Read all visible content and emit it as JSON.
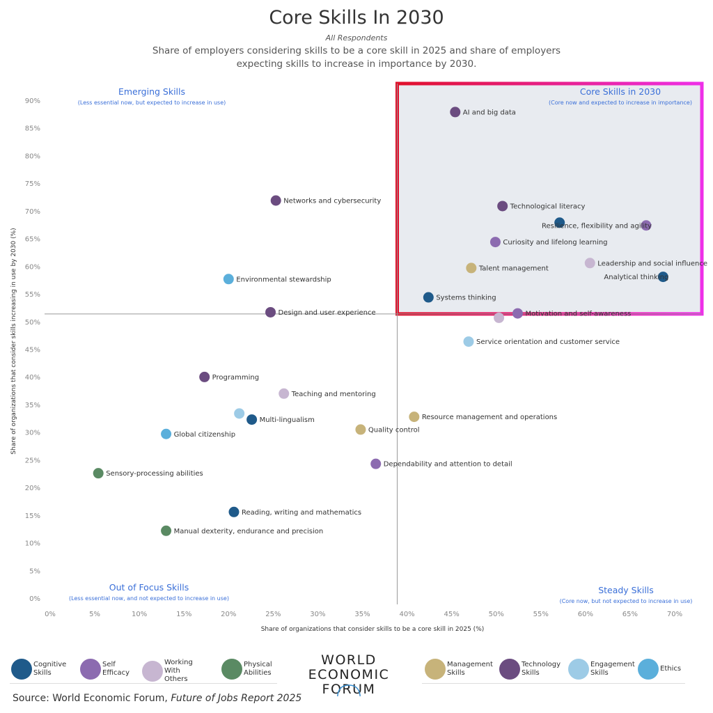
{
  "header": {
    "title": "Core Skills In 2030",
    "respondents": "All Respondents",
    "subtitle": "Share of employers considering skills to be a core skill in 2025 and share of employers expecting skills to increase in importance by 2030."
  },
  "quadrants": {
    "emerging": {
      "title": "Emerging Skills",
      "subtitle": "(Less essential now, but expected to increase in use)"
    },
    "core": {
      "title": "Core Skills in 2030",
      "subtitle": "(Core now and expected to increase in importance)"
    },
    "out_of_focus": {
      "title": "Out of Focus Skills",
      "subtitle": "(Less essential now, and not expected to increase in use)"
    },
    "steady": {
      "title": "Steady Skills",
      "subtitle": "(Core now, but not expected to increase in use)"
    }
  },
  "colors": {
    "Cognitive Skills": "#1f5a8a",
    "Self Efficacy": "#8c6bb0",
    "Working With Others": "#c7b6d1",
    "Physical Abilities": "#5a8a63",
    "Management Skills": "#c7b37a",
    "Technology Skills": "#6b4c80",
    "Engagement Skills": "#9dcbe6",
    "Ethics": "#5bafdb",
    "quadrant_fill": "#e8ebf0",
    "quadrant_border_start": "#e0102a",
    "quadrant_border_end": "#ee2fe8",
    "quadrant_title": "#3a6fd8"
  },
  "legend": [
    {
      "label": "Cognitive Skills",
      "line1": "Cognitive",
      "line2": "Skills"
    },
    {
      "label": "Self Efficacy",
      "line1": "Self",
      "line2": "Efficacy"
    },
    {
      "label": "Working With Others",
      "line1": "Working With",
      "line2": "Others"
    },
    {
      "label": "Physical Abilities",
      "line1": "Physical",
      "line2": "Abilities"
    },
    {
      "label": "Management Skills",
      "line1": "Management",
      "line2": "Skills"
    },
    {
      "label": "Technology Skills",
      "line1": "Technology",
      "line2": "Skills"
    },
    {
      "label": "Engagement Skills",
      "line1": "Engagement",
      "line2": "Skills"
    },
    {
      "label": "Ethics",
      "line1": "Ethics",
      "line2": ""
    }
  ],
  "logo": {
    "line1": "WORLD",
    "line2": "ECONOMIC",
    "line3": "FORUM"
  },
  "source": {
    "prefix": "Source: World Economic Forum, ",
    "report": "Future of Jobs Report 2025"
  },
  "chart_data": {
    "type": "scatter",
    "title": "Core Skills In 2030",
    "xlabel": "Share of organizations that consider skills to be a core skill in 2025 (%)",
    "ylabel": "Share of organizations that consider skills increasing in use by 2030 (%)",
    "xlim": [
      0,
      70
    ],
    "ylim": [
      0,
      90
    ],
    "xticks": [
      "0%",
      "5%",
      "10%",
      "15%",
      "20%",
      "25%",
      "30%",
      "35%",
      "40%",
      "45%",
      "50%",
      "55%",
      "60%",
      "65%",
      "70%"
    ],
    "yticks": [
      "0%",
      "5%",
      "10%",
      "15%",
      "20%",
      "25%",
      "30%",
      "35%",
      "40%",
      "45%",
      "50%",
      "55%",
      "60%",
      "65%",
      "70%",
      "75%",
      "80%",
      "85%",
      "90%"
    ],
    "divider": {
      "x": 38.9,
      "y": 51.5
    },
    "points": [
      {
        "label": "AI and big data",
        "x": 45.4,
        "y": 88.0,
        "category": "Technology Skills",
        "label_side": "right"
      },
      {
        "label": "Networks and cybersecurity",
        "x": 25.3,
        "y": 72.0,
        "category": "Technology Skills",
        "label_side": "right"
      },
      {
        "label": "Technological literacy",
        "x": 50.7,
        "y": 71.0,
        "category": "Technology Skills",
        "label_side": "right"
      },
      {
        "label": "",
        "x": 57.1,
        "y": 68.0,
        "category": "Cognitive Skills",
        "label_side": "right"
      },
      {
        "label": "Resilience, flexibility and agility",
        "x": 66.8,
        "y": 67.5,
        "category": "Self Efficacy",
        "label_side": "left"
      },
      {
        "label": "Curiosity and lifelong learning",
        "x": 49.9,
        "y": 64.5,
        "category": "Self Efficacy",
        "label_side": "right"
      },
      {
        "label": "Leadership and social influence",
        "x": 60.5,
        "y": 60.7,
        "category": "Working With Others",
        "label_side": "right"
      },
      {
        "label": "Talent management",
        "x": 47.2,
        "y": 59.8,
        "category": "Management Skills",
        "label_side": "right"
      },
      {
        "label": "Analytical thinking",
        "x": 68.7,
        "y": 58.2,
        "category": "Cognitive Skills",
        "label_side": "left"
      },
      {
        "label": "Environmental stewardship",
        "x": 20.0,
        "y": 57.8,
        "category": "Ethics",
        "label_side": "right"
      },
      {
        "label": "Systems thinking",
        "x": 42.4,
        "y": 54.5,
        "category": "Cognitive Skills",
        "label_side": "right"
      },
      {
        "label": "Design and user experience",
        "x": 24.7,
        "y": 51.8,
        "category": "Technology Skills",
        "label_side": "right"
      },
      {
        "label": "Motivation and self-awareness",
        "x": 52.4,
        "y": 51.6,
        "category": "Self Efficacy",
        "label_side": "right"
      },
      {
        "label": "",
        "x": 50.3,
        "y": 50.8,
        "category": "Working With Others",
        "label_side": "right"
      },
      {
        "label": "Service orientation and customer service",
        "x": 46.9,
        "y": 46.5,
        "category": "Engagement Skills",
        "label_side": "right"
      },
      {
        "label": "Programming",
        "x": 17.3,
        "y": 40.1,
        "category": "Technology Skills",
        "label_side": "right"
      },
      {
        "label": "Teaching and mentoring",
        "x": 26.2,
        "y": 37.1,
        "category": "Working With Others",
        "label_side": "right"
      },
      {
        "label": "",
        "x": 21.2,
        "y": 33.5,
        "category": "Engagement Skills",
        "label_side": "right"
      },
      {
        "label": "Resource management and operations",
        "x": 40.8,
        "y": 32.9,
        "category": "Management Skills",
        "label_side": "right"
      },
      {
        "label": "Multi-lingualism",
        "x": 22.6,
        "y": 32.4,
        "category": "Cognitive Skills",
        "label_side": "right"
      },
      {
        "label": "Quality control",
        "x": 34.8,
        "y": 30.6,
        "category": "Management Skills",
        "label_side": "right"
      },
      {
        "label": "Global citizenship",
        "x": 13.0,
        "y": 29.8,
        "category": "Ethics",
        "label_side": "right"
      },
      {
        "label": "Dependability and attention to detail",
        "x": 36.5,
        "y": 24.4,
        "category": "Self Efficacy",
        "label_side": "right"
      },
      {
        "label": "Sensory-processing abilities",
        "x": 5.4,
        "y": 22.7,
        "category": "Physical Abilities",
        "label_side": "right"
      },
      {
        "label": "Reading, writing and mathematics",
        "x": 20.6,
        "y": 15.7,
        "category": "Cognitive Skills",
        "label_side": "right"
      },
      {
        "label": "Manual dexterity, endurance and precision",
        "x": 13.0,
        "y": 12.3,
        "category": "Physical Abilities",
        "label_side": "right"
      }
    ]
  }
}
